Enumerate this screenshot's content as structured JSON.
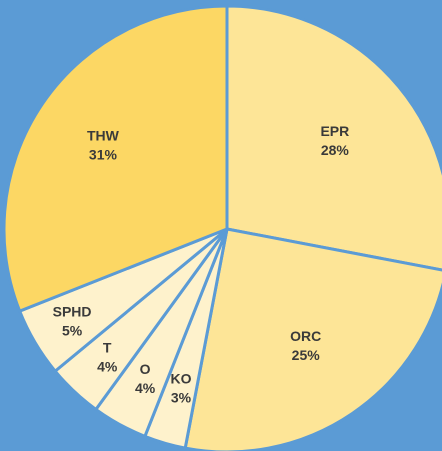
{
  "chart_data": {
    "type": "pie",
    "title": "",
    "slices": [
      {
        "label": "EPR",
        "percent_text": "28%",
        "value": 28,
        "color": "#FDE597"
      },
      {
        "label": "ORC",
        "percent_text": "25%",
        "value": 25,
        "color": "#FDE597"
      },
      {
        "label": "KO",
        "percent_text": "3%",
        "value": 3,
        "color": "#FEF2CC"
      },
      {
        "label": "O",
        "percent_text": "4%",
        "value": 4,
        "color": "#FEF2CC"
      },
      {
        "label": "T",
        "percent_text": "4%",
        "value": 4,
        "color": "#FEF2CC"
      },
      {
        "label": "SPHD",
        "percent_text": "5%",
        "value": 5,
        "color": "#FEF2CC"
      },
      {
        "label": "THW",
        "percent_text": "31%",
        "value": 31,
        "color": "#FCD764"
      }
    ],
    "start_angle_deg": 0,
    "direction": "clockwise",
    "legend": "none",
    "background_color": "#5B9BD5",
    "slice_border_color": "#5B9BD5"
  }
}
